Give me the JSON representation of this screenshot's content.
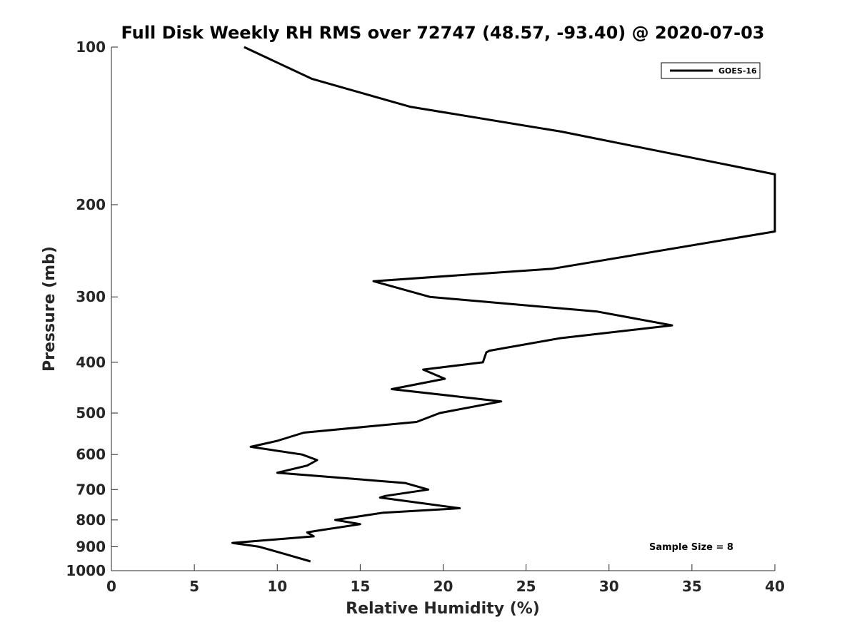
{
  "chart_data": {
    "type": "line",
    "title": "Full Disk Weekly RH RMS over 72747 (48.57, -93.40) @ 2020-07-03",
    "xlabel": "Relative Humidity (%)",
    "ylabel": "Pressure (mb)",
    "xlim": [
      0,
      40
    ],
    "ylim": [
      100,
      1000
    ],
    "y_scale": "log",
    "y_reversed": true,
    "x_ticks": [
      "0",
      "5",
      "10",
      "15",
      "20",
      "25",
      "30",
      "35",
      "40"
    ],
    "y_ticks": [
      "100",
      "200",
      "300",
      "400",
      "500",
      "600",
      "700",
      "800",
      "900",
      "1000"
    ],
    "grid": false,
    "legend_position": "top-right",
    "annotation": "Sample Size = 8",
    "series": [
      {
        "name": "GOES-16",
        "color": "#000000",
        "x": [
          8.0,
          12.1,
          18.0,
          27.1,
          40.0,
          40.0,
          26.6,
          15.8,
          19.2,
          29.3,
          33.8,
          27.0,
          22.8,
          22.6,
          22.4,
          18.8,
          20.1,
          16.9,
          23.5,
          19.8,
          18.4,
          11.6,
          10.0,
          8.4,
          11.5,
          12.4,
          11.8,
          10.0,
          17.7,
          19.1,
          16.5,
          16.2,
          21.0,
          16.4,
          13.5,
          15.0,
          12.3,
          11.8,
          12.2,
          7.3,
          8.9,
          10.5,
          12.0
        ],
        "y": [
          100,
          115,
          130,
          145,
          175,
          225,
          265,
          280,
          300,
          320,
          340,
          360,
          380,
          383,
          400,
          413,
          430,
          450,
          475,
          500,
          520,
          545,
          565,
          580,
          600,
          615,
          630,
          650,
          680,
          700,
          720,
          725,
          760,
          775,
          800,
          815,
          840,
          845,
          860,
          885,
          900,
          930,
          960
        ]
      }
    ]
  }
}
